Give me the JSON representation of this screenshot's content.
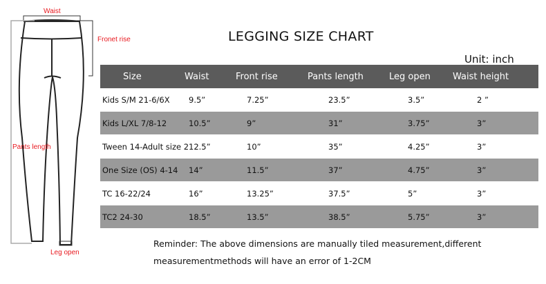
{
  "title": "LEGGING SIZE CHART",
  "unit": "Unit: inch",
  "diagram_labels": {
    "waist": "Waist",
    "front_rise": "Fronet rise",
    "pants_length": "Pants length",
    "leg_open": "Leg open"
  },
  "table": {
    "headers": [
      "Size",
      "Waist",
      "Front rise",
      "Pants length",
      "Leg open",
      "Waist height"
    ],
    "rows": [
      [
        "Kids S/M 21-6/6X",
        "9.5”",
        "7.25”",
        "23.5”",
        "3.5”",
        "2 ”"
      ],
      [
        "Kids L/XL 7/8-12",
        "10.5”",
        "9”",
        "31”",
        "3.75”",
        "3”"
      ],
      [
        "Tween 14-Adult size 2",
        "12.5”",
        "10”",
        "35”",
        "4.25”",
        "3”"
      ],
      [
        "One Size  (OS)   4-14",
        "14”",
        "11.5”",
        "37”",
        "4.75”",
        "3”"
      ],
      [
        "TC 16-22/24",
        "16”",
        "13.25”",
        "37.5”",
        "5”",
        "3”"
      ],
      [
        "TC2 24-30",
        "18.5”",
        "13.5”",
        "38.5”",
        "5.75”",
        "3”"
      ]
    ]
  },
  "reminder": {
    "line1": "Reminder: The above dimensions are manually tiled measurement,different",
    "line2": "measurementmethods will have an error of 1-2CM"
  },
  "colors": {
    "header": "#5b5b5b",
    "stripe": "#9a9a9a",
    "label": "#e8191f"
  }
}
